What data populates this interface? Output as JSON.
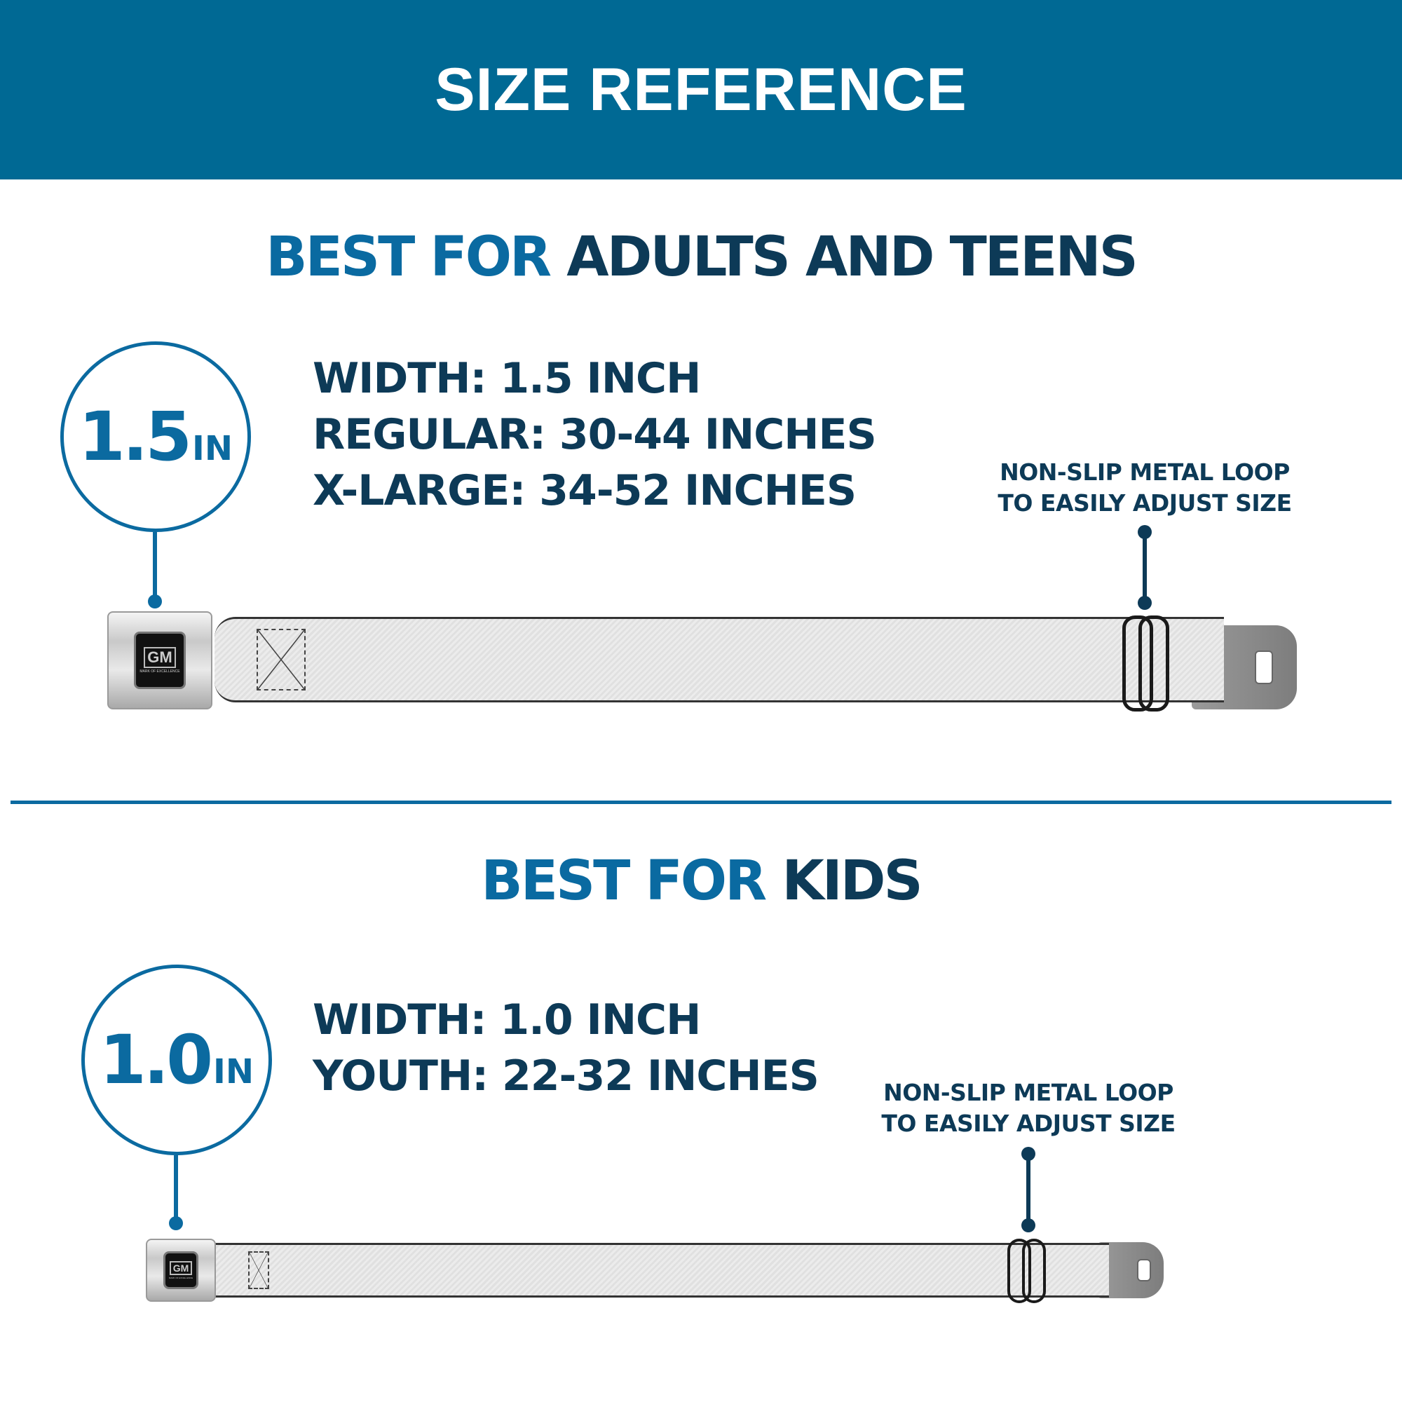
{
  "header": {
    "title": "SIZE REFERENCE"
  },
  "colors": {
    "header_bg": "#006994",
    "accent": "#0a6aa1",
    "dark": "#0d3a57"
  },
  "sections": [
    {
      "heading_accent": "BEST FOR",
      "heading_main": "ADULTS AND TEENS",
      "width_badge": {
        "value": "1.5",
        "unit": "IN"
      },
      "specs": [
        "WIDTH: 1.5 INCH",
        "REGULAR: 30-44 INCHES",
        "X-LARGE: 34-52 INCHES"
      ],
      "callout": [
        "NON-SLIP METAL LOOP",
        "TO EASILY ADJUST SIZE"
      ],
      "buckle_logo": {
        "brand": "GM",
        "tagline": "MARK OF EXCELLENCE"
      }
    },
    {
      "heading_accent": "BEST FOR",
      "heading_main": "KIDS",
      "width_badge": {
        "value": "1.0",
        "unit": "IN"
      },
      "specs": [
        "WIDTH: 1.0 INCH",
        "YOUTH: 22-32 INCHES"
      ],
      "callout": [
        "NON-SLIP METAL LOOP",
        "TO EASILY ADJUST SIZE"
      ],
      "buckle_logo": {
        "brand": "GM",
        "tagline": "MARK OF EXCELLENCE"
      }
    }
  ]
}
